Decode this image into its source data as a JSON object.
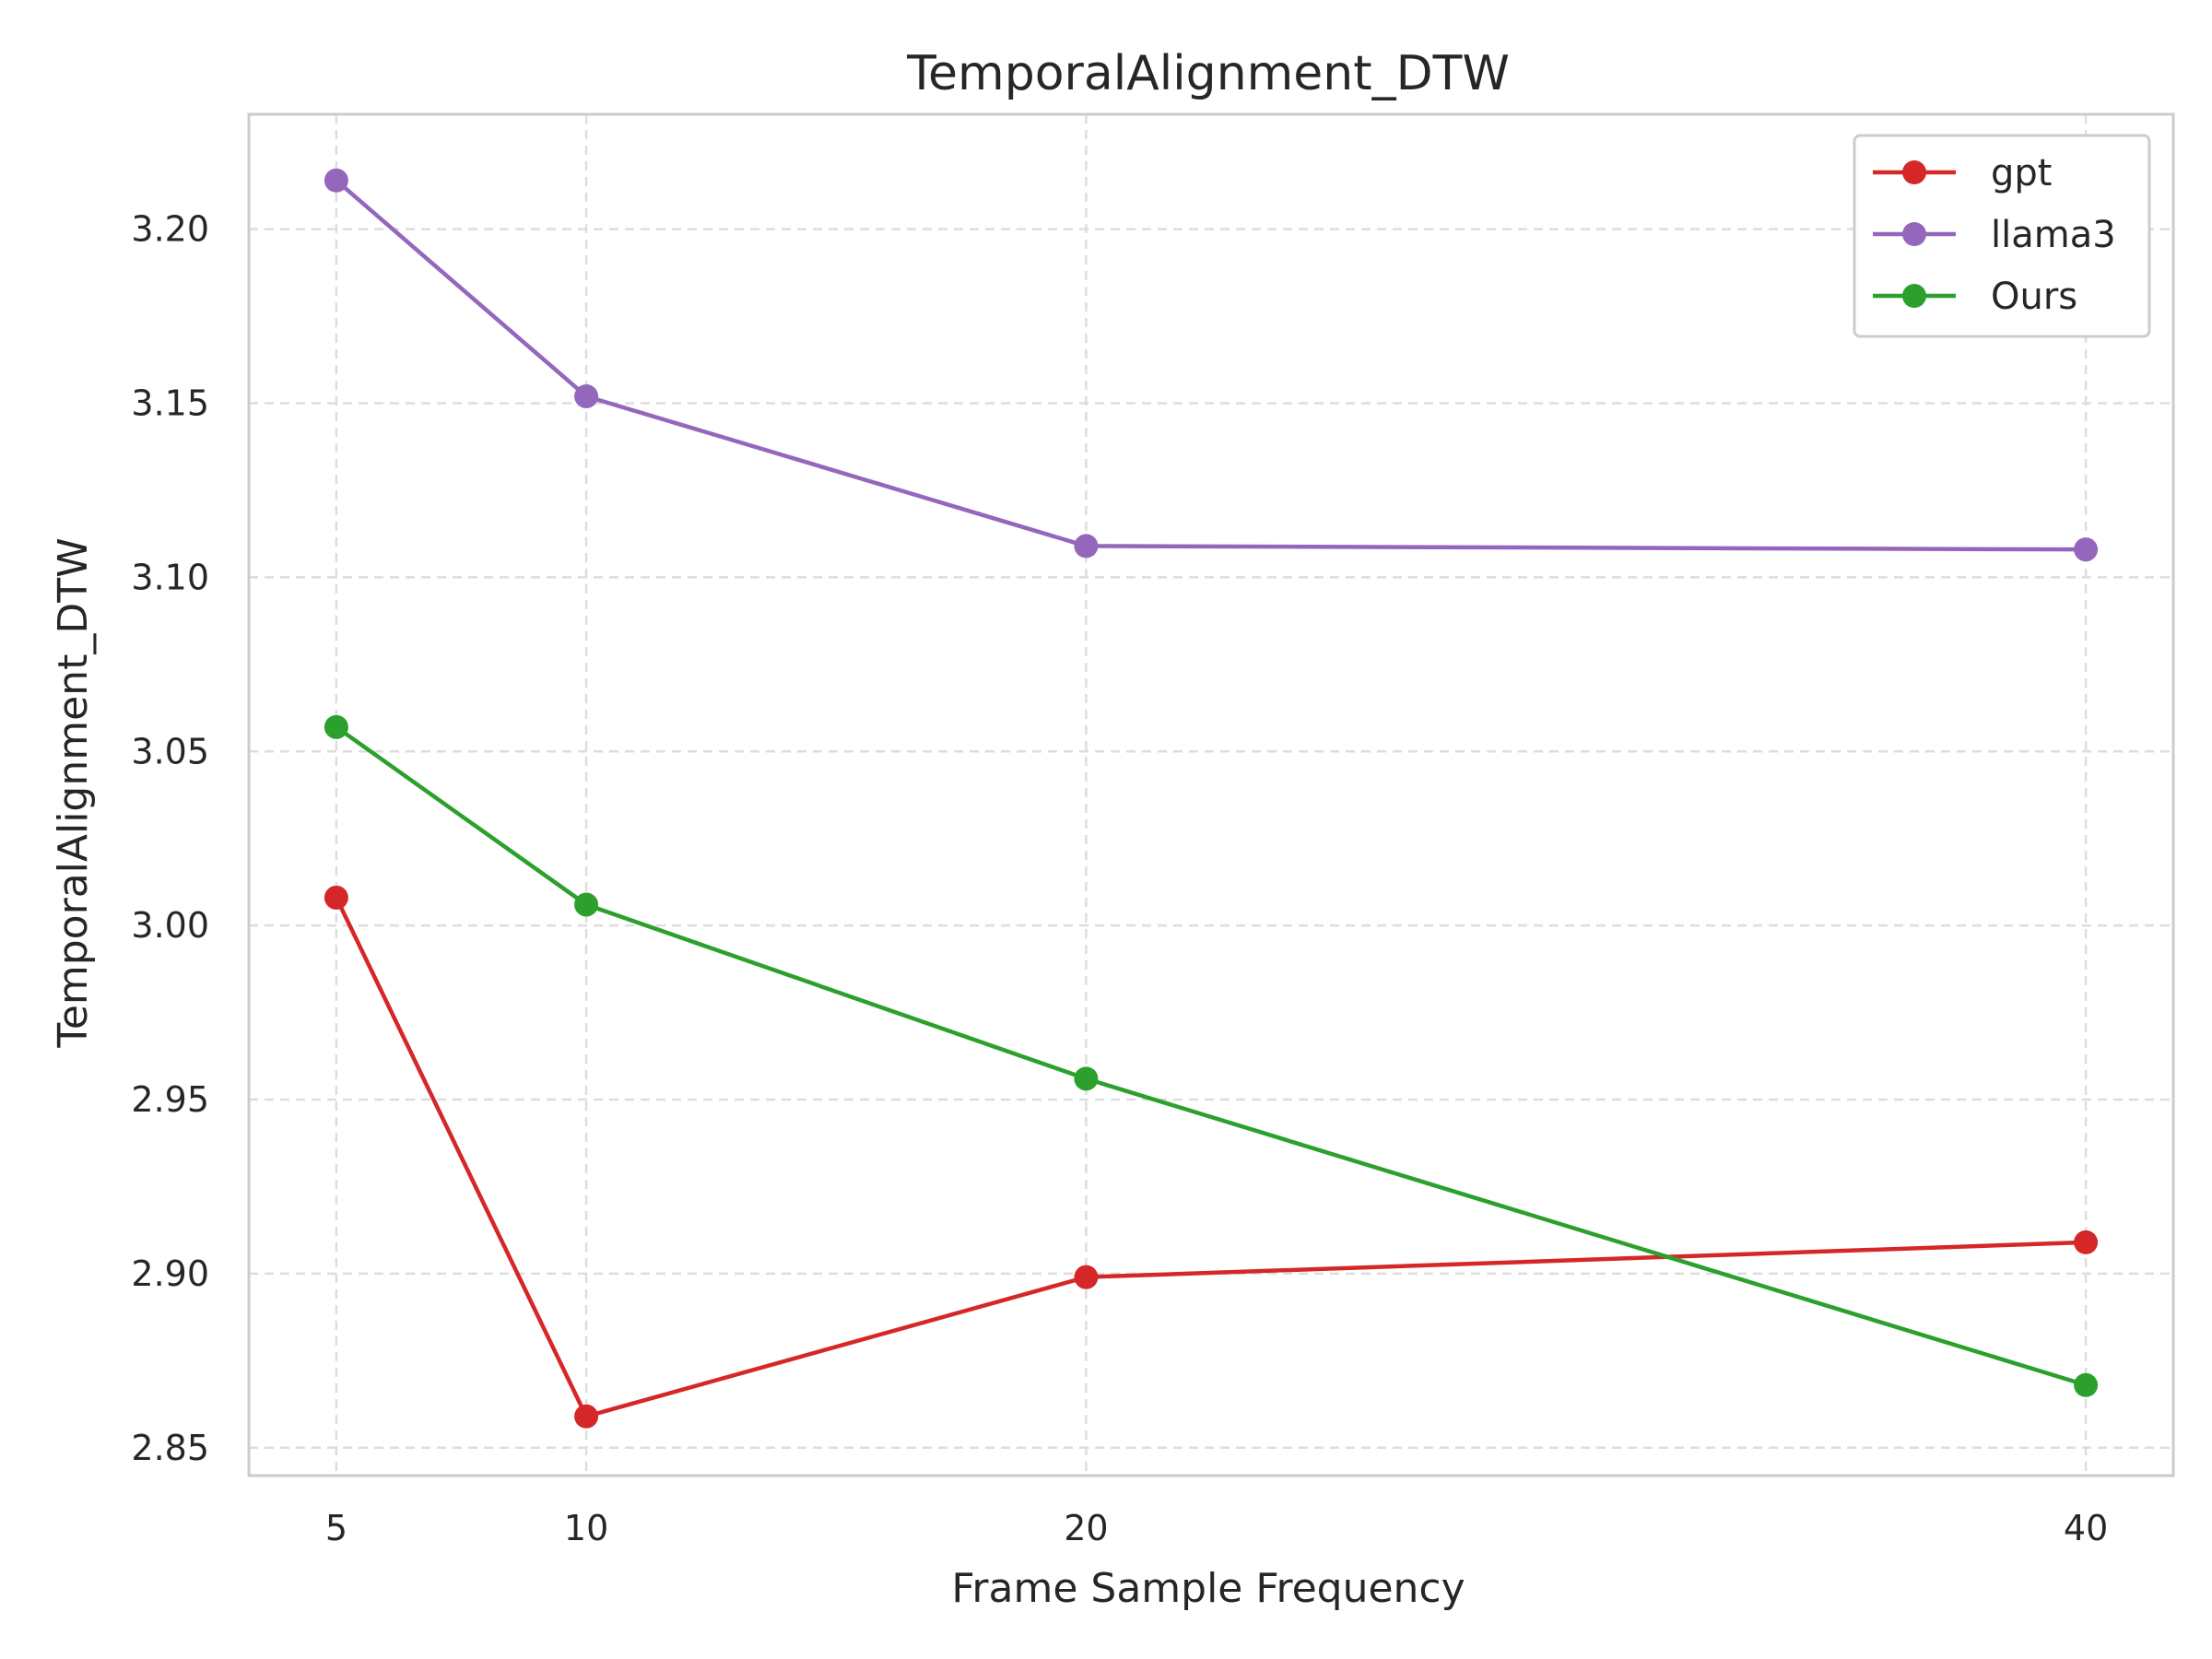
{
  "chart_data": {
    "type": "line",
    "title": "TemporalAlignment_DTW",
    "xlabel": "Frame Sample Frequency",
    "ylabel": "TemporalAlignment_DTW",
    "x": [
      5,
      10,
      20,
      40
    ],
    "x_tick_labels": [
      "5",
      "10",
      "20",
      "40"
    ],
    "xlim": [
      3.25,
      41.75
    ],
    "y_ticks": [
      2.85,
      2.9,
      2.95,
      3.0,
      3.05,
      3.1,
      3.15,
      3.2
    ],
    "y_tick_labels": [
      "2.85",
      "2.90",
      "2.95",
      "3.00",
      "3.05",
      "3.10",
      "3.15",
      "3.20"
    ],
    "ylim": [
      2.842,
      3.233
    ],
    "grid": true,
    "legend_position": "top-right",
    "series": [
      {
        "name": "gpt",
        "color": "#d62728",
        "values": [
          3.008,
          2.859,
          2.899,
          2.909
        ]
      },
      {
        "name": "llama3",
        "color": "#9467bd",
        "values": [
          3.214,
          3.152,
          3.109,
          3.108
        ]
      },
      {
        "name": "Ours",
        "color": "#2ca02c",
        "values": [
          3.057,
          3.006,
          2.956,
          2.868
        ]
      }
    ]
  }
}
